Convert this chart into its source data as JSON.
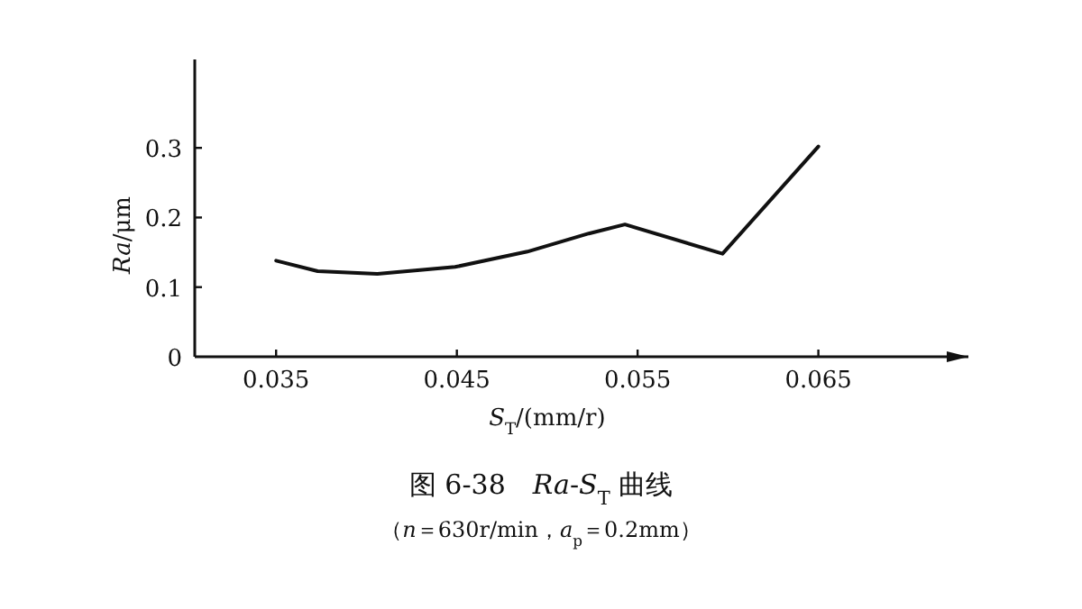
{
  "chart_data": {
    "type": "line",
    "title": "图 6-38　*Ra*-*S*$_{T}$ 曲线",
    "subtitle": "（*n*＝630r/min，*a*$_{p}$＝0.2mm）",
    "xlabel": "*S*$_{T}$/(mm/r)",
    "ylabel": "*Ra*/μm",
    "x": [
      0.035,
      0.0373,
      0.0406,
      0.0449,
      0.0489,
      0.0523,
      0.0543,
      0.0597,
      0.065
    ],
    "values": [
      0.138,
      0.123,
      0.119,
      0.129,
      0.151,
      0.177,
      0.19,
      0.148,
      0.302
    ],
    "color": "#111111",
    "xlim": [
      0.0305,
      0.0733
    ],
    "ylim": [
      0,
      0.427
    ],
    "xticks": [
      0.035,
      0.045,
      0.055,
      0.065
    ],
    "yticks": [
      0,
      0.1,
      0.2,
      0.3
    ]
  }
}
